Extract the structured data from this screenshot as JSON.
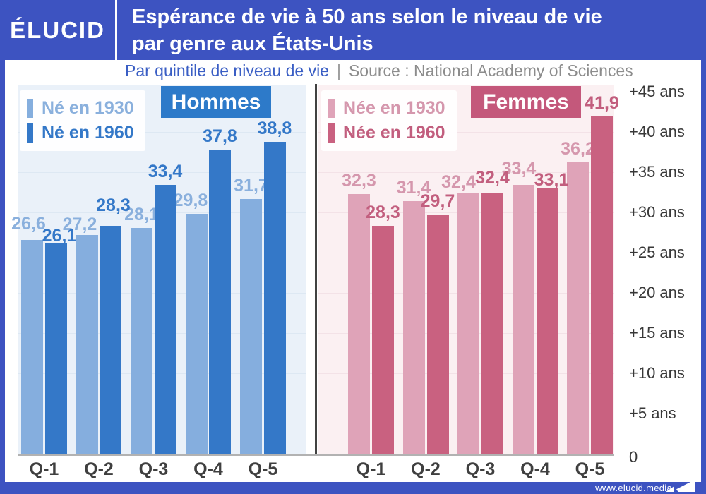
{
  "header": {
    "logo": "ÉLUCID",
    "title_line1": "Espérance de vie à 50 ans selon le niveau de vie",
    "title_line2": "par genre aux États-Unis",
    "subtitle": "Par quintile de niveau de vie",
    "subtitle_separator": "|",
    "source": "Source : National Academy of Sciences"
  },
  "footer": {
    "url": "www.elucid.media"
  },
  "colors": {
    "brand_blue": "#3d53c1",
    "men_bg": "#eaf1f9",
    "men_box": "#2d7ac9",
    "women_bg": "#fbf0f2",
    "women_box": "#c4587b",
    "divider": "#414141",
    "baseline": "#b2b2b2"
  },
  "chart_data": {
    "type": "bar",
    "categories": [
      "Q-1",
      "Q-2",
      "Q-3",
      "Q-4",
      "Q-5"
    ],
    "ylabel": "ans",
    "ylim": [
      0,
      45
    ],
    "grid": true,
    "yticks": [
      {
        "value": 45,
        "label": "+45 ans"
      },
      {
        "value": 40,
        "label": "+40 ans"
      },
      {
        "value": 35,
        "label": "+35 ans"
      },
      {
        "value": 30,
        "label": "+30 ans"
      },
      {
        "value": 25,
        "label": "+25 ans"
      },
      {
        "value": 20,
        "label": "+20 ans"
      },
      {
        "value": 15,
        "label": "+15 ans"
      },
      {
        "value": 10,
        "label": "+10 ans"
      },
      {
        "value": 5,
        "label": "+5 ans"
      },
      {
        "value": 0,
        "label": "0"
      }
    ],
    "panels": [
      {
        "title": "Hommes",
        "series": [
          {
            "name": "Né en 1930",
            "values": [
              26.6,
              27.2,
              28.1,
              29.8,
              31.7
            ],
            "labels": [
              "26,6",
              "27,2",
              "28,1",
              "29,8",
              "31,7"
            ],
            "bar_color": "#85aede",
            "label_color": "#8ab0dd"
          },
          {
            "name": "Né en 1960",
            "values": [
              26.1,
              28.3,
              33.4,
              37.8,
              38.8
            ],
            "labels": [
              "26,1",
              "28,3",
              "33,4",
              "37,8",
              "38,8"
            ],
            "bar_color": "#3478c8",
            "label_color": "#3478c8"
          }
        ]
      },
      {
        "title": "Femmes",
        "series": [
          {
            "name": "Née en 1930",
            "values": [
              32.3,
              31.4,
              32.4,
              33.4,
              36.2
            ],
            "labels": [
              "32,3",
              "31,4",
              "32,4",
              "33,4",
              "36,2"
            ],
            "bar_color": "#dfa3b8",
            "label_color": "#d597ad"
          },
          {
            "name": "Née en 1960",
            "values": [
              28.3,
              29.7,
              32.4,
              33.1,
              41.9
            ],
            "labels": [
              "28,3",
              "29,7",
              "32,4",
              "33,1",
              "41,9"
            ],
            "bar_color": "#c96180",
            "label_color": "#c25e7e"
          }
        ]
      }
    ]
  }
}
